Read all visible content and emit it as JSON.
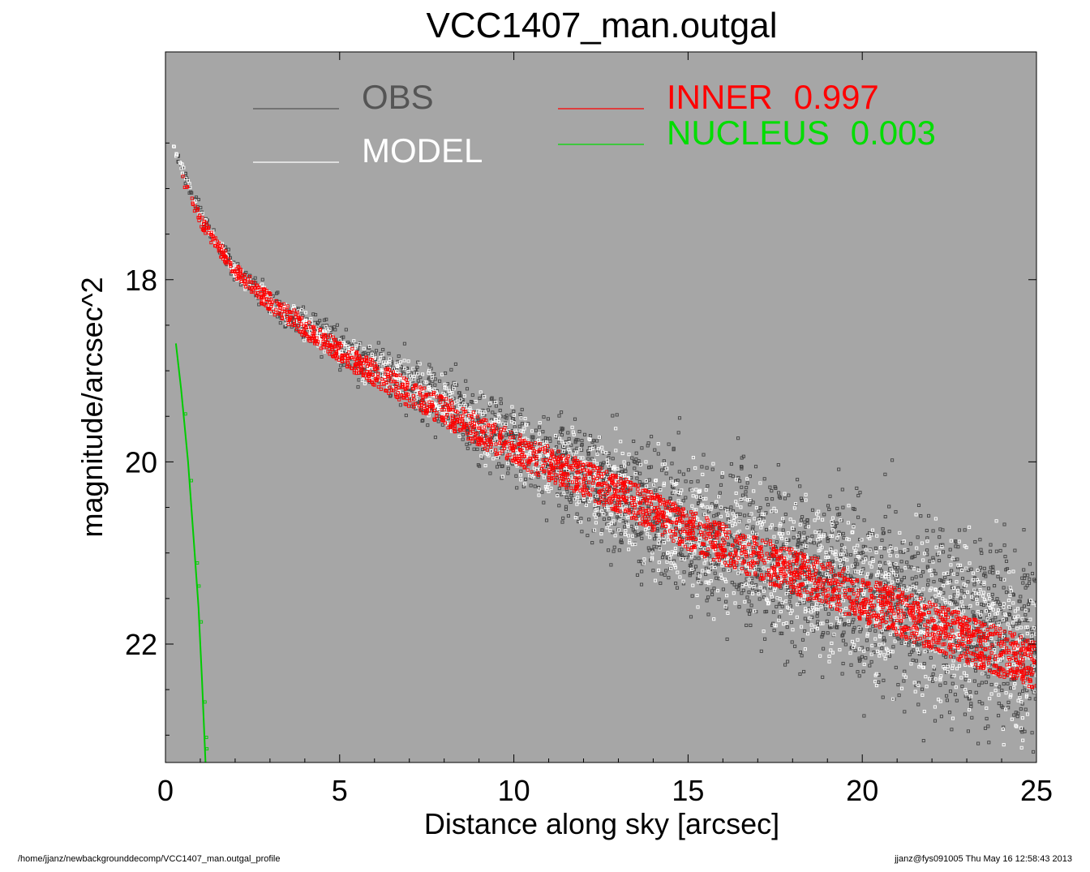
{
  "chart_data": {
    "type": "scatter",
    "title": "VCC1407_man.outgal",
    "xlabel": "Distance along sky [arcsec]",
    "ylabel": "magnitude/arcsec^2",
    "xlim": [
      0,
      25
    ],
    "ylim": [
      23.3,
      15.5
    ],
    "y_inverted": true,
    "background_color": "#a6a6a6",
    "x_ticks": [
      "0",
      "5",
      "10",
      "15",
      "20",
      "25"
    ],
    "x_tick_values": [
      0,
      5,
      10,
      15,
      20,
      25
    ],
    "y_ticks": [
      "18",
      "20",
      "22"
    ],
    "y_tick_values": [
      18,
      20,
      22
    ],
    "legend": [
      {
        "label": "OBS",
        "color": "#555555",
        "value": ""
      },
      {
        "label": "MODEL",
        "color": "#ffffff",
        "value": ""
      },
      {
        "label": "INNER",
        "color": "#ff0000",
        "value": "0.997"
      },
      {
        "label": "NUCLEUS",
        "color": "#00dd00",
        "value": "0.003"
      }
    ],
    "series": [
      {
        "name": "OBS",
        "kind": "scatter-markers",
        "color": "#444444",
        "profile_x": [
          0.2,
          1,
          2,
          3,
          5,
          7,
          10,
          13,
          15,
          18,
          20,
          22,
          25
        ],
        "profile_y": [
          16.5,
          17.3,
          17.9,
          18.25,
          18.75,
          19.15,
          19.8,
          20.35,
          20.75,
          21.15,
          21.45,
          21.7,
          22.1
        ],
        "scatter_spread": [
          0.05,
          0.08,
          0.1,
          0.13,
          0.18,
          0.25,
          0.4,
          0.6,
          0.75,
          0.85,
          0.9,
          0.95,
          1.0
        ]
      },
      {
        "name": "MODEL",
        "kind": "scatter-markers",
        "color": "#ffffff",
        "profile_x": [
          0.2,
          1,
          2,
          3,
          5,
          7,
          10,
          13,
          15,
          18,
          20,
          22,
          25
        ],
        "profile_y": [
          16.5,
          17.3,
          17.9,
          18.25,
          18.75,
          19.15,
          19.8,
          20.35,
          20.75,
          21.15,
          21.45,
          21.7,
          22.1
        ]
      },
      {
        "name": "INNER",
        "kind": "scatter-markers",
        "color": "#ff0000",
        "profile_x": [
          0.5,
          1,
          2,
          3,
          5,
          7,
          10,
          13,
          15,
          18,
          20,
          22,
          25
        ],
        "profile_y": [
          16.9,
          17.35,
          17.9,
          18.25,
          18.8,
          19.25,
          19.85,
          20.35,
          20.75,
          21.2,
          21.5,
          21.8,
          22.25
        ],
        "band_halfwidth": [
          0.05,
          0.07,
          0.08,
          0.1,
          0.12,
          0.15,
          0.18,
          0.2,
          0.22,
          0.24,
          0.25,
          0.26,
          0.27
        ]
      },
      {
        "name": "NUCLEUS",
        "kind": "line",
        "color": "#00cc00",
        "x": [
          0.3,
          0.45,
          0.65,
          0.8,
          0.95,
          1.05,
          1.15
        ],
        "y": [
          18.7,
          19.2,
          20.0,
          20.8,
          21.6,
          22.4,
          23.3
        ]
      }
    ]
  },
  "footer": {
    "left": "/home/jjanz/newbackgrounddecomp/VCC1407_man.outgal_profile",
    "right": "jjanz@fys091005  Thu May 16 12:58:43 2013"
  }
}
